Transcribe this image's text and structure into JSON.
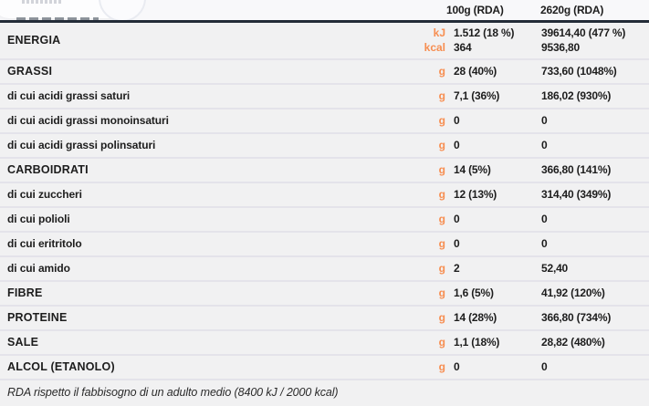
{
  "table": {
    "col_100g": "100g (RDA)",
    "col_total": "2620g (RDA)",
    "rows": [
      {
        "label": "ENERGIA",
        "lines": [
          {
            "unit": "kJ",
            "per100": "1.512 (18 %)",
            "perTotal": "39614,40 (477 %)"
          },
          {
            "unit": "kcal",
            "per100": "364",
            "perTotal": "9536,80"
          }
        ]
      },
      {
        "label": "GRASSI",
        "unit": "g",
        "per100": "28 (40%)",
        "perTotal": "733,60 (1048%)"
      },
      {
        "label": "di cui acidi grassi saturi",
        "unit": "g",
        "per100": "7,1 (36%)",
        "perTotal": "186,02 (930%)"
      },
      {
        "label": "di cui acidi grassi monoinsaturi",
        "unit": "g",
        "per100": "0",
        "perTotal": "0"
      },
      {
        "label": "di cui acidi grassi polinsaturi",
        "unit": "g",
        "per100": "0",
        "perTotal": "0"
      },
      {
        "label": "CARBOIDRATI",
        "unit": "g",
        "per100": "14 (5%)",
        "perTotal": "366,80 (141%)"
      },
      {
        "label": "di cui zuccheri",
        "unit": "g",
        "per100": "12 (13%)",
        "perTotal": "314,40 (349%)"
      },
      {
        "label": "di cui polioli",
        "unit": "g",
        "per100": "0",
        "perTotal": "0"
      },
      {
        "label": "di cui eritritolo",
        "unit": "g",
        "per100": "0",
        "perTotal": "0"
      },
      {
        "label": "di cui amido",
        "unit": "g",
        "per100": "2",
        "perTotal": "52,40"
      },
      {
        "label": "FIBRE",
        "unit": "g",
        "per100": "1,6 (5%)",
        "perTotal": "41,92 (120%)"
      },
      {
        "label": "PROTEINE",
        "unit": "g",
        "per100": "14 (28%)",
        "perTotal": "366,80 (734%)"
      },
      {
        "label": "SALE",
        "unit": "g",
        "per100": "1,1 (18%)",
        "perTotal": "28,82 (480%)"
      },
      {
        "label": "ALCOL (ETANOLO)",
        "unit": "g",
        "per100": "0",
        "perTotal": "0"
      }
    ]
  },
  "footer": {
    "note": "RDA rispetto il fabbisogno di un adulto medio (8400 kJ / 2000 kcal)"
  },
  "colors": {
    "accent_orange": "#F78E51",
    "header_rule": "#232C38",
    "row_background": "#F1F1F2",
    "divider": "#E4E3EA",
    "text": "#1D1D1D"
  }
}
